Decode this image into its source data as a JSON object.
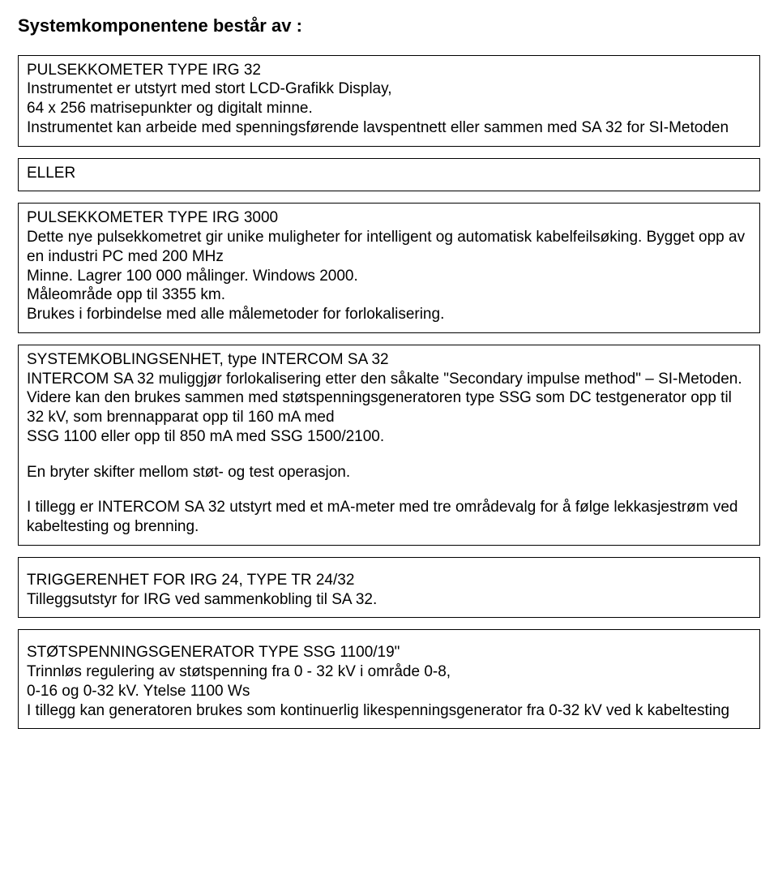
{
  "heading": "Systemkomponentene består av :",
  "box1": {
    "l1": "PULSEKKOMETER TYPE IRG 32",
    "l2": "Instrumentet er utstyrt med stort LCD-Grafikk Display,",
    "l3": "64 x 256 matrisepunkter og digitalt minne.",
    "l4": "Instrumentet kan arbeide med spenningsførende lavspentnett eller sammen med SA 32 for SI-Metoden"
  },
  "box2": {
    "l1": "ELLER"
  },
  "box3": {
    "l1": "PULSEKKOMETER TYPE IRG 3000",
    "l2": "Dette nye pulsekkometret gir unike muligheter for intelligent og automatisk kabelfeilsøking. Bygget opp av en industri PC med 200 MHz",
    "l3": "Minne. Lagrer 100 000 målinger. Windows 2000.",
    "l4": "Måleområde opp til 3355 km.",
    "l5": "Brukes i forbindelse med alle målemetoder for forlokalisering."
  },
  "box4": {
    "l1": "SYSTEMKOBLINGSENHET, type INTERCOM SA 32",
    "l2": "INTERCOM SA 32 muliggjør forlokalisering etter den såkalte \"Secondary impulse method\" – SI-Metoden. Videre kan den brukes sammen med støtspenningsgeneratoren type SSG som DC testgenerator opp til 32 kV, som brennapparat opp til 160 mA med",
    "l3": "SSG 1100 eller opp til 850 mA med SSG 1500/2100.",
    "l4": "En bryter skifter mellom støt- og test operasjon.",
    "l5": "I tillegg er INTERCOM SA 32 utstyrt med et mA-meter med tre områdevalg for å følge lekkasjestrøm ved kabeltesting og brenning."
  },
  "box5": {
    "l1": "TRIGGERENHET FOR IRG 24, TYPE TR 24/32",
    "l2": "Tilleggsutstyr for IRG ved sammenkobling til SA 32."
  },
  "box6": {
    "l1": "STØTSPENNINGSGENERATOR TYPE SSG 1100/19\"",
    "l2": "Trinnløs regulering av støtspenning fra 0 - 32 kV i område 0-8,",
    "l3": "0-16 og 0-32 kV. Ytelse 1100 Ws",
    "l4": "I tillegg kan generatoren brukes som kontinuerlig likespenningsgenerator fra 0-32 kV ved k kabeltesting"
  }
}
